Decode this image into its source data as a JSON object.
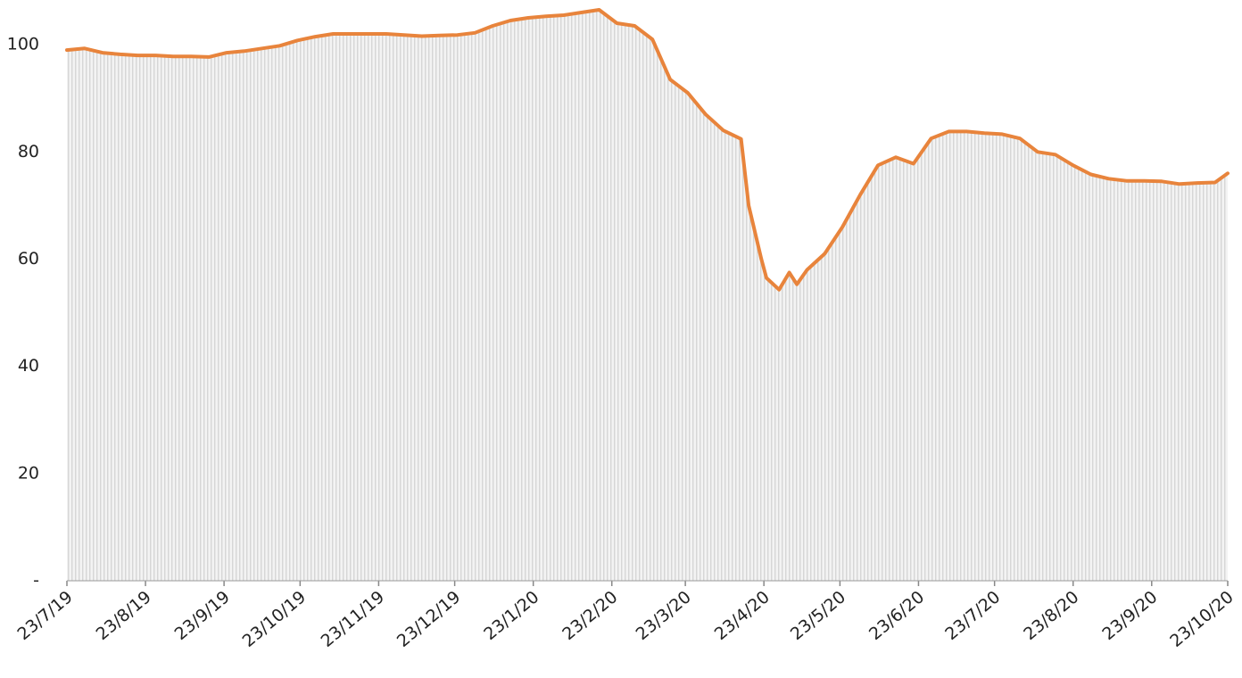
{
  "chart_data": {
    "type": "line",
    "x": [
      "2019-07-23",
      "2019-07-30",
      "2019-08-06",
      "2019-08-13",
      "2019-08-20",
      "2019-08-27",
      "2019-09-03",
      "2019-09-10",
      "2019-09-17",
      "2019-09-24",
      "2019-10-01",
      "2019-10-08",
      "2019-10-15",
      "2019-10-22",
      "2019-10-29",
      "2019-11-05",
      "2019-11-12",
      "2019-11-19",
      "2019-11-26",
      "2019-12-03",
      "2019-12-10",
      "2019-12-17",
      "2019-12-24",
      "2019-12-31",
      "2020-01-07",
      "2020-01-14",
      "2020-01-21",
      "2020-01-28",
      "2020-02-04",
      "2020-02-11",
      "2020-02-18",
      "2020-02-25",
      "2020-03-03",
      "2020-03-10",
      "2020-03-17",
      "2020-03-24",
      "2020-03-31",
      "2020-04-07",
      "2020-04-14",
      "2020-04-17",
      "2020-04-22",
      "2020-04-24",
      "2020-04-29",
      "2020-05-03",
      "2020-05-06",
      "2020-05-10",
      "2020-05-17",
      "2020-05-24",
      "2020-05-31",
      "2020-06-07",
      "2020-06-14",
      "2020-06-21",
      "2020-06-28",
      "2020-07-05",
      "2020-07-12",
      "2020-07-19",
      "2020-07-26",
      "2020-08-02",
      "2020-08-09",
      "2020-08-16",
      "2020-08-23",
      "2020-08-30",
      "2020-09-06",
      "2020-09-13",
      "2020-09-20",
      "2020-09-27",
      "2020-10-04",
      "2020-10-11",
      "2020-10-18",
      "2020-10-23"
    ],
    "values": [
      99,
      99.3,
      98.5,
      98.2,
      98,
      98,
      97.8,
      97.8,
      97.7,
      98.5,
      98.8,
      99.3,
      99.8,
      100.8,
      101.5,
      102,
      102,
      102,
      102,
      101.8,
      101.6,
      101.7,
      101.8,
      102.2,
      103.5,
      104.5,
      105,
      105.3,
      105.5,
      106,
      106.5,
      104,
      103.5,
      101,
      93.5,
      91,
      87,
      84,
      82.4,
      70,
      60,
      56.5,
      54.3,
      57.5,
      55.3,
      58,
      61,
      66,
      72,
      77.5,
      79,
      77.8,
      82.5,
      83.8,
      83.8,
      83.5,
      83.3,
      82.5,
      80,
      79.5,
      77.5,
      75.8,
      75,
      74.6,
      74.6,
      74.5,
      74,
      74.2,
      74.3,
      76
    ],
    "color": "#e8843c",
    "fill_color": "#d9d9d9",
    "ylim": [
      0,
      107
    ],
    "yticks": [
      {
        "value": 0,
        "label": "-"
      },
      20,
      40,
      60,
      80,
      100
    ],
    "xticks": [
      {
        "value": "2019-07-23",
        "label": "23/7/19"
      },
      {
        "value": "2019-08-23",
        "label": "23/8/19"
      },
      {
        "value": "2019-09-23",
        "label": "23/9/19"
      },
      {
        "value": "2019-10-23",
        "label": "23/10/19"
      },
      {
        "value": "2019-11-23",
        "label": "23/11/19"
      },
      {
        "value": "2019-12-23",
        "label": "23/12/19"
      },
      {
        "value": "2020-01-23",
        "label": "23/1/20"
      },
      {
        "value": "2020-02-23",
        "label": "23/2/20"
      },
      {
        "value": "2020-03-23",
        "label": "23/3/20"
      },
      {
        "value": "2020-04-23",
        "label": "23/4/20"
      },
      {
        "value": "2020-05-23",
        "label": "23/5/20"
      },
      {
        "value": "2020-06-23",
        "label": "23/6/20"
      },
      {
        "value": "2020-07-23",
        "label": "23/7/20"
      },
      {
        "value": "2020-08-23",
        "label": "23/8/20"
      },
      {
        "value": "2020-09-23",
        "label": "23/9/20"
      },
      {
        "value": "2020-10-23",
        "label": "23/10/20"
      }
    ],
    "grid": false
  }
}
